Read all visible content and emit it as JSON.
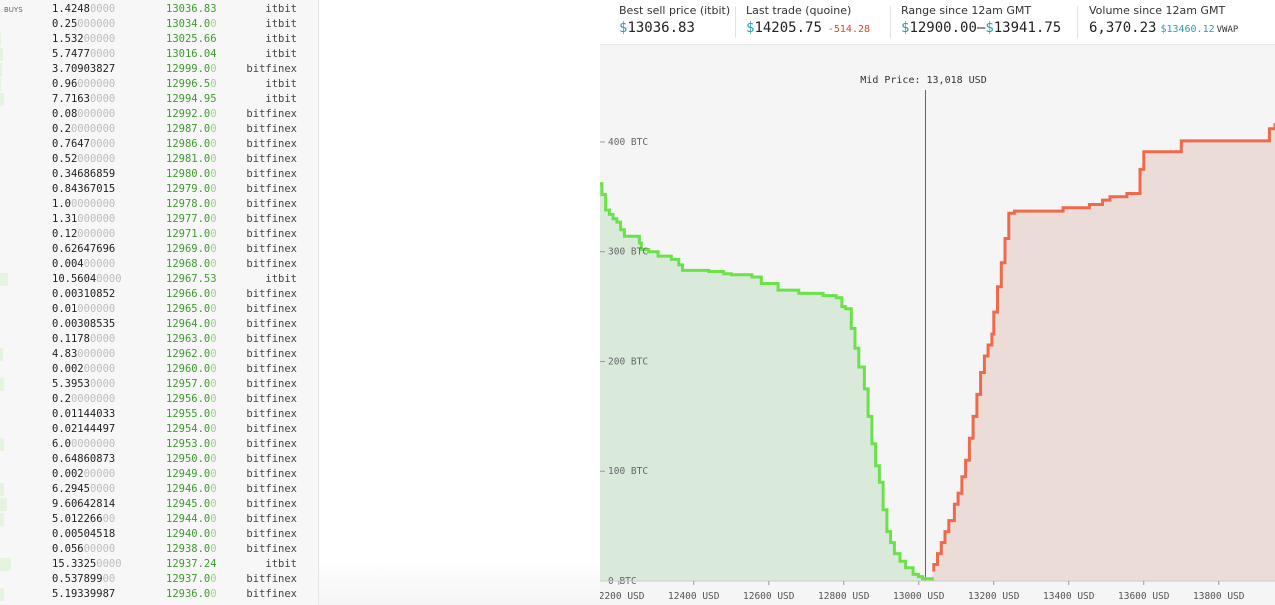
{
  "book": {
    "buys_label": "BUYS",
    "rows": [
      {
        "amt": "1.4248",
        "amt_pad": "0000",
        "price": "13036.83",
        "price_pad": "",
        "exch": "itbit",
        "depth": 0
      },
      {
        "amt": "0.25",
        "amt_pad": "000000",
        "price": "13034.0",
        "price_pad": "0",
        "exch": "itbit",
        "depth": 0
      },
      {
        "amt": "1.532",
        "amt_pad": "00000",
        "price": "13025.66",
        "price_pad": "",
        "exch": "itbit",
        "depth": 1
      },
      {
        "amt": "5.7477",
        "amt_pad": "0000",
        "price": "13016.04",
        "price_pad": "",
        "exch": "itbit",
        "depth": 3
      },
      {
        "amt": "3.70903827",
        "amt_pad": "",
        "price": "12999.0",
        "price_pad": "0",
        "exch": "bitfinex",
        "depth": 2
      },
      {
        "amt": "0.96",
        "amt_pad": "000000",
        "price": "12996.5",
        "price_pad": "0",
        "exch": "itbit",
        "depth": 1
      },
      {
        "amt": "7.7163",
        "amt_pad": "0000",
        "price": "12994.95",
        "price_pad": "",
        "exch": "itbit",
        "depth": 4
      },
      {
        "amt": "0.08",
        "amt_pad": "000000",
        "price": "12992.0",
        "price_pad": "0",
        "exch": "bitfinex",
        "depth": 0
      },
      {
        "amt": "0.2",
        "amt_pad": "0000000",
        "price": "12987.0",
        "price_pad": "0",
        "exch": "bitfinex",
        "depth": 0
      },
      {
        "amt": "0.7647",
        "amt_pad": "0000",
        "price": "12986.0",
        "price_pad": "0",
        "exch": "bitfinex",
        "depth": 0
      },
      {
        "amt": "0.52",
        "amt_pad": "000000",
        "price": "12981.0",
        "price_pad": "0",
        "exch": "bitfinex",
        "depth": 0
      },
      {
        "amt": "0.34686859",
        "amt_pad": "",
        "price": "12980.0",
        "price_pad": "0",
        "exch": "bitfinex",
        "depth": 0
      },
      {
        "amt": "0.84367015",
        "amt_pad": "",
        "price": "12979.0",
        "price_pad": "0",
        "exch": "bitfinex",
        "depth": 0
      },
      {
        "amt": "1.0",
        "amt_pad": "0000000",
        "price": "12978.0",
        "price_pad": "0",
        "exch": "bitfinex",
        "depth": 0
      },
      {
        "amt": "1.31",
        "amt_pad": "000000",
        "price": "12977.0",
        "price_pad": "0",
        "exch": "bitfinex",
        "depth": 0
      },
      {
        "amt": "0.12",
        "amt_pad": "000000",
        "price": "12971.0",
        "price_pad": "0",
        "exch": "bitfinex",
        "depth": 0
      },
      {
        "amt": "0.62647696",
        "amt_pad": "",
        "price": "12969.0",
        "price_pad": "0",
        "exch": "bitfinex",
        "depth": 0
      },
      {
        "amt": "0.004",
        "amt_pad": "00000",
        "price": "12968.0",
        "price_pad": "0",
        "exch": "bitfinex",
        "depth": 0
      },
      {
        "amt": "10.5604",
        "amt_pad": "0000",
        "price": "12967.53",
        "price_pad": "",
        "exch": "itbit",
        "depth": 8
      },
      {
        "amt": "0.00310852",
        "amt_pad": "",
        "price": "12966.0",
        "price_pad": "0",
        "exch": "bitfinex",
        "depth": 0
      },
      {
        "amt": "0.01",
        "amt_pad": "000000",
        "price": "12965.0",
        "price_pad": "0",
        "exch": "bitfinex",
        "depth": 0
      },
      {
        "amt": "0.00308535",
        "amt_pad": "",
        "price": "12964.0",
        "price_pad": "0",
        "exch": "bitfinex",
        "depth": 0
      },
      {
        "amt": "0.1178",
        "amt_pad": "0000",
        "price": "12963.0",
        "price_pad": "0",
        "exch": "bitfinex",
        "depth": 0
      },
      {
        "amt": "4.83",
        "amt_pad": "000000",
        "price": "12962.0",
        "price_pad": "0",
        "exch": "bitfinex",
        "depth": 3
      },
      {
        "amt": "0.002",
        "amt_pad": "00000",
        "price": "12960.0",
        "price_pad": "0",
        "exch": "bitfinex",
        "depth": 0
      },
      {
        "amt": "5.3953",
        "amt_pad": "0000",
        "price": "12957.0",
        "price_pad": "0",
        "exch": "bitfinex",
        "depth": 4
      },
      {
        "amt": "0.2",
        "amt_pad": "0000000",
        "price": "12956.0",
        "price_pad": "0",
        "exch": "bitfinex",
        "depth": 0
      },
      {
        "amt": "0.01144033",
        "amt_pad": "",
        "price": "12955.0",
        "price_pad": "0",
        "exch": "bitfinex",
        "depth": 0
      },
      {
        "amt": "0.02144497",
        "amt_pad": "",
        "price": "12954.0",
        "price_pad": "0",
        "exch": "bitfinex",
        "depth": 0
      },
      {
        "amt": "6.0",
        "amt_pad": "0000000",
        "price": "12953.0",
        "price_pad": "0",
        "exch": "bitfinex",
        "depth": 4
      },
      {
        "amt": "0.64860873",
        "amt_pad": "",
        "price": "12950.0",
        "price_pad": "0",
        "exch": "bitfinex",
        "depth": 0
      },
      {
        "amt": "0.002",
        "amt_pad": "00000",
        "price": "12949.0",
        "price_pad": "0",
        "exch": "bitfinex",
        "depth": 0
      },
      {
        "amt": "6.2945",
        "amt_pad": "0000",
        "price": "12946.0",
        "price_pad": "0",
        "exch": "bitfinex",
        "depth": 4
      },
      {
        "amt": "9.60642814",
        "amt_pad": "",
        "price": "12945.0",
        "price_pad": "0",
        "exch": "bitfinex",
        "depth": 7
      },
      {
        "amt": "5.012266",
        "amt_pad": "00",
        "price": "12944.0",
        "price_pad": "0",
        "exch": "bitfinex",
        "depth": 4
      },
      {
        "amt": "0.00504518",
        "amt_pad": "",
        "price": "12940.0",
        "price_pad": "0",
        "exch": "bitfinex",
        "depth": 0
      },
      {
        "amt": "0.056",
        "amt_pad": "00000",
        "price": "12938.0",
        "price_pad": "0",
        "exch": "bitfinex",
        "depth": 0
      },
      {
        "amt": "15.3325",
        "amt_pad": "0000",
        "price": "12937.24",
        "price_pad": "",
        "exch": "itbit",
        "depth": 11
      },
      {
        "amt": "0.537899",
        "amt_pad": "00",
        "price": "12937.0",
        "price_pad": "0",
        "exch": "bitfinex",
        "depth": 0
      },
      {
        "amt": "5.19339987",
        "amt_pad": "",
        "price": "12936.0",
        "price_pad": "0",
        "exch": "bitfinex",
        "depth": 4
      }
    ]
  },
  "stats": {
    "best_sell": {
      "label": "Best sell price (itbit)",
      "currency": "$",
      "value": "13036.83"
    },
    "last_trade": {
      "label": "Last trade (quoine)",
      "currency": "$",
      "value": "14205.75",
      "change": "-514.28"
    },
    "range": {
      "label": "Range since 12am GMT",
      "cur1": "$",
      "low": "12900.00",
      "dash": "–",
      "cur2": "$",
      "high": "13941.75"
    },
    "volume": {
      "label": "Volume since 12am GMT",
      "value": "6,370.23",
      "vwap_value": "$13460.12",
      "vwap_label": "VWAP"
    }
  },
  "chart_data": {
    "type": "area",
    "annotation": "Mid Price: 13,018 USD",
    "mid_price": 13018,
    "xlim": [
      12150,
      13950
    ],
    "ylim": [
      0,
      420
    ],
    "x_ticks": [
      "12200 USD",
      "12400 USD",
      "12600 USD",
      "12800 USD",
      "13000 USD",
      "13200 USD",
      "13400 USD",
      "13600 USD",
      "13800 USD"
    ],
    "x_tick_values": [
      12200,
      12400,
      12600,
      12800,
      13000,
      13200,
      13400,
      13600,
      13800
    ],
    "y_ticks": [
      "0 BTC",
      "100 BTC",
      "200 BTC",
      "300 BTC",
      "400 BTC"
    ],
    "y_tick_values": [
      0,
      100,
      200,
      300,
      400
    ],
    "series": [
      {
        "side": "bids",
        "color": "#6be24a",
        "fill": "#d9eadb",
        "points": [
          [
            12150,
            362
          ],
          [
            12155,
            352
          ],
          [
            12165,
            338
          ],
          [
            12175,
            334
          ],
          [
            12185,
            330
          ],
          [
            12195,
            327
          ],
          [
            12205,
            320
          ],
          [
            12215,
            314
          ],
          [
            12240,
            314
          ],
          [
            12255,
            308
          ],
          [
            12260,
            302
          ],
          [
            12280,
            300
          ],
          [
            12305,
            296
          ],
          [
            12340,
            293
          ],
          [
            12360,
            288
          ],
          [
            12370,
            283
          ],
          [
            12400,
            283
          ],
          [
            12440,
            282
          ],
          [
            12460,
            282
          ],
          [
            12480,
            280
          ],
          [
            12500,
            279
          ],
          [
            12530,
            279
          ],
          [
            12555,
            277
          ],
          [
            12580,
            271
          ],
          [
            12600,
            271
          ],
          [
            12625,
            265
          ],
          [
            12660,
            265
          ],
          [
            12680,
            262
          ],
          [
            12740,
            262
          ],
          [
            12745,
            260
          ],
          [
            12780,
            258
          ],
          [
            12795,
            250
          ],
          [
            12805,
            248
          ],
          [
            12820,
            230
          ],
          [
            12830,
            212
          ],
          [
            12840,
            195
          ],
          [
            12855,
            175
          ],
          [
            12865,
            150
          ],
          [
            12875,
            125
          ],
          [
            12885,
            105
          ],
          [
            12895,
            90
          ],
          [
            12905,
            65
          ],
          [
            12915,
            45
          ],
          [
            12925,
            35
          ],
          [
            12935,
            25
          ],
          [
            12950,
            18
          ],
          [
            12965,
            12
          ],
          [
            12985,
            6
          ],
          [
            12999,
            4
          ],
          [
            13010,
            2
          ],
          [
            13036,
            0
          ]
        ]
      },
      {
        "side": "asks",
        "color": "#ee6a4a",
        "fill": "#ecdcd8",
        "points": [
          [
            13036,
            10
          ],
          [
            13040,
            15
          ],
          [
            13050,
            25
          ],
          [
            13060,
            35
          ],
          [
            13070,
            45
          ],
          [
            13080,
            55
          ],
          [
            13095,
            70
          ],
          [
            13105,
            80
          ],
          [
            13115,
            95
          ],
          [
            13125,
            110
          ],
          [
            13135,
            130
          ],
          [
            13145,
            150
          ],
          [
            13155,
            170
          ],
          [
            13165,
            190
          ],
          [
            13175,
            205
          ],
          [
            13185,
            215
          ],
          [
            13195,
            225
          ],
          [
            13200,
            245
          ],
          [
            13210,
            268
          ],
          [
            13220,
            290
          ],
          [
            13230,
            312
          ],
          [
            13240,
            335
          ],
          [
            13255,
            337
          ],
          [
            13380,
            337
          ],
          [
            13385,
            340
          ],
          [
            13450,
            340
          ],
          [
            13455,
            343
          ],
          [
            13490,
            347
          ],
          [
            13510,
            350
          ],
          [
            13555,
            353
          ],
          [
            13590,
            375
          ],
          [
            13600,
            391
          ],
          [
            13690,
            391
          ],
          [
            13700,
            401
          ],
          [
            13930,
            401
          ],
          [
            13935,
            412
          ],
          [
            13950,
            417
          ]
        ]
      }
    ]
  }
}
